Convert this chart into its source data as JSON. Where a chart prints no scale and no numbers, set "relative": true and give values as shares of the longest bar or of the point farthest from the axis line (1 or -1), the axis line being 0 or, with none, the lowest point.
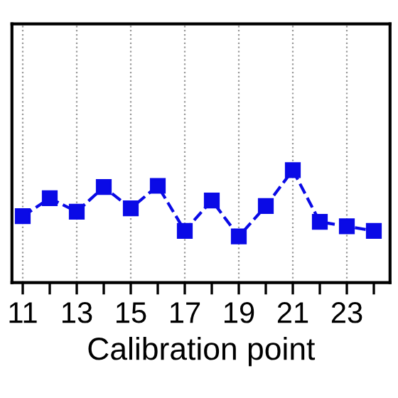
{
  "chart_data": {
    "type": "line",
    "xlabel": "Calibration point",
    "relative": true,
    "x": [
      11,
      12,
      13,
      14,
      15,
      16,
      17,
      18,
      19,
      20,
      21,
      22,
      23,
      24
    ],
    "series": [
      {
        "color": "#0a0ae6",
        "values": [
          0.59,
          0.75,
          0.63,
          0.85,
          0.66,
          0.86,
          0.46,
          0.73,
          0.41,
          0.68,
          1,
          0.54,
          0.5,
          0.46
        ]
      }
    ],
    "xlim": [
      10.6,
      24.6
    ],
    "xticks": [
      11,
      {
        "value": 12,
        "label": null
      },
      13,
      {
        "value": 14,
        "label": null
      },
      15,
      {
        "value": 16,
        "label": null
      },
      17,
      {
        "value": 18,
        "label": null
      },
      19,
      {
        "value": 20,
        "label": null
      },
      21,
      {
        "value": 22,
        "label": null
      },
      23,
      {
        "value": 24,
        "label": null
      }
    ],
    "grid": "x",
    "marker": "square",
    "line_style": "dashed"
  }
}
